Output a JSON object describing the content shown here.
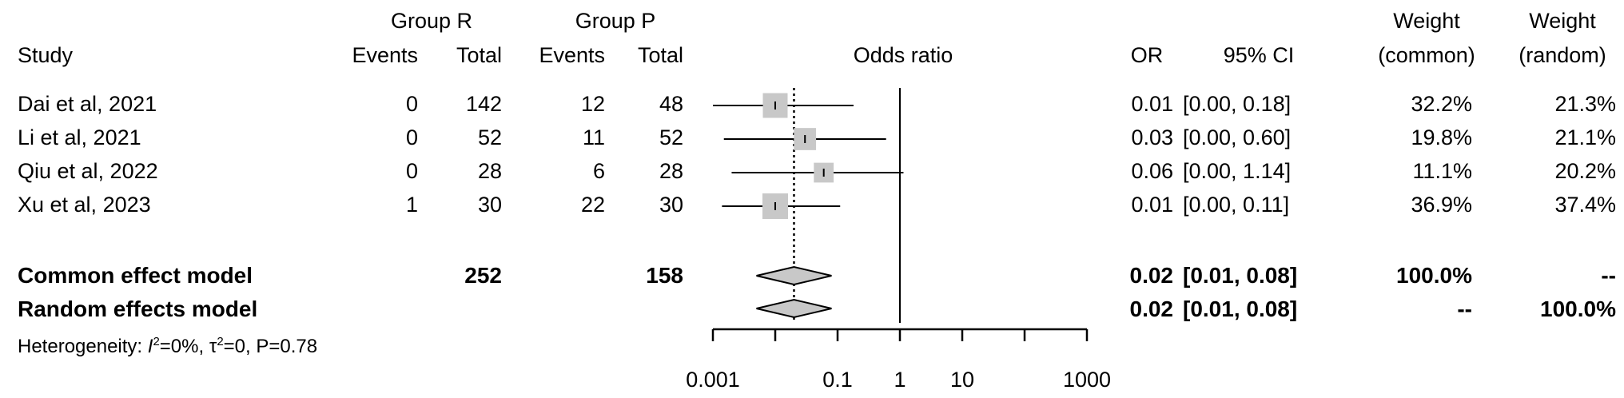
{
  "headers": {
    "study": "Study",
    "group_r": "Group R",
    "group_p": "Group P",
    "events": "Events",
    "total": "Total",
    "odds_ratio": "Odds ratio",
    "or": "OR",
    "ci": "95% CI",
    "weight": "Weight",
    "common": "(common)",
    "random": "(random)"
  },
  "studies": [
    {
      "name": "Dai et al, 2021",
      "r_events": "0",
      "r_total": "142",
      "p_events": "12",
      "p_total": "48",
      "or": "0.01",
      "ci": "[0.00, 0.18]",
      "w_common": "32.2%",
      "w_random": "21.3%"
    },
    {
      "name": "Li et al, 2021",
      "r_events": "0",
      "r_total": "52",
      "p_events": "11",
      "p_total": "52",
      "or": "0.03",
      "ci": "[0.00, 0.60]",
      "w_common": "19.8%",
      "w_random": "21.1%"
    },
    {
      "name": "Qiu et al, 2022",
      "r_events": "0",
      "r_total": "28",
      "p_events": "6",
      "p_total": "28",
      "or": "0.06",
      "ci": "[0.00, 1.14]",
      "w_common": "11.1%",
      "w_random": "20.2%"
    },
    {
      "name": "Xu et al, 2023",
      "r_events": "1",
      "r_total": "30",
      "p_events": "22",
      "p_total": "30",
      "or": "0.01",
      "ci": "[0.00, 0.11]",
      "w_common": "36.9%",
      "w_random": "37.4%"
    }
  ],
  "pooled": [
    {
      "name": "Common effect model",
      "r_total": "252",
      "p_total": "158",
      "or": "0.02",
      "ci": "[0.01, 0.08]",
      "w_common": "100.0%",
      "w_random": "--"
    },
    {
      "name": "Random effects model",
      "or": "0.02",
      "ci": "[0.01, 0.08]",
      "w_common": "--",
      "w_random": "100.0%"
    }
  ],
  "heterogeneity": {
    "prefix": "Heterogeneity: ",
    "i_symbol": "I",
    "i_sup": "2",
    "i_value": "=0%, ",
    "tau_symbol": "τ",
    "tau_sup": "2",
    "tau_value": "=0, P=0.78"
  },
  "chart_data": {
    "type": "forest",
    "x_scale": "log",
    "xlim": [
      0.001,
      1000
    ],
    "x_ticks": [
      0.001,
      0.1,
      1,
      10,
      1000
    ],
    "x_tick_labels": [
      "0.001",
      "0.1",
      "1",
      "10",
      "1000"
    ],
    "reference_line": 1,
    "pooled_estimate_line": 0.02,
    "box_color": "#c8c8c8",
    "diamond_color": "#c8c8c8",
    "studies": [
      {
        "name": "Dai et al, 2021",
        "or": 0.01,
        "lower": 0.0008,
        "upper": 0.18,
        "weight": 32.2
      },
      {
        "name": "Li et al, 2021",
        "or": 0.03,
        "lower": 0.0015,
        "upper": 0.6,
        "weight": 19.8
      },
      {
        "name": "Qiu et al, 2022",
        "or": 0.06,
        "lower": 0.002,
        "upper": 1.14,
        "weight": 11.1
      },
      {
        "name": "Xu et al, 2023",
        "or": 0.01,
        "lower": 0.0014,
        "upper": 0.11,
        "weight": 36.9
      }
    ],
    "pooled": [
      {
        "name": "Common effect model",
        "or": 0.02,
        "lower": 0.005,
        "upper": 0.08
      },
      {
        "name": "Random effects model",
        "or": 0.02,
        "lower": 0.005,
        "upper": 0.08
      }
    ]
  }
}
